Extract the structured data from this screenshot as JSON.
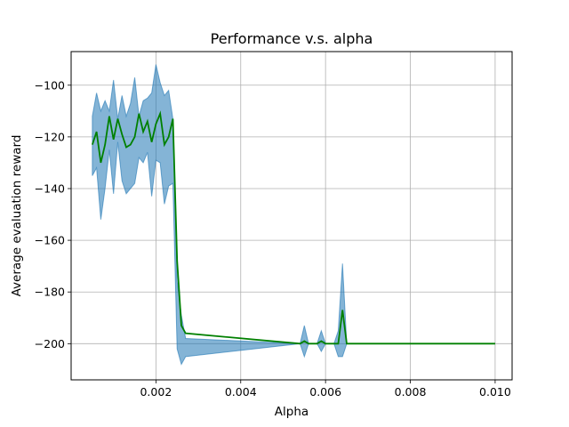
{
  "chart_data": {
    "type": "line",
    "title": "Performance v.s. alpha",
    "xlabel": "Alpha",
    "ylabel": "Average evaluation reward",
    "xlim": [
      0.0,
      0.0104
    ],
    "ylim": [
      -214,
      -87
    ],
    "xticks": [
      0.002,
      0.004,
      0.006,
      0.008,
      0.01
    ],
    "xtick_labels": [
      "0.002",
      "0.004",
      "0.006",
      "0.008",
      "0.010"
    ],
    "yticks": [
      -100,
      -120,
      -140,
      -160,
      -180,
      -200
    ],
    "ytick_labels": [
      "−100",
      "−120",
      "−140",
      "−160",
      "−180",
      "−200"
    ],
    "grid": true,
    "colors": {
      "mean_line": "#008000",
      "band_fill": "#1f77b4",
      "grid": "#b0b0b0"
    },
    "series": [
      {
        "x": [
          0.0005,
          0.0006,
          0.0007,
          0.0008,
          0.0009,
          0.001,
          0.0011,
          0.0012,
          0.0013,
          0.0014,
          0.0015,
          0.0016,
          0.0017,
          0.0018,
          0.0019,
          0.002,
          0.0021,
          0.0022,
          0.0023,
          0.0024,
          0.0025,
          0.0026,
          0.0027,
          0.0054,
          0.0055,
          0.0056,
          0.0057,
          0.0058,
          0.0059,
          0.006,
          0.0061,
          0.0062,
          0.0063,
          0.0064,
          0.0065,
          0.01
        ],
        "mean": [
          -123,
          -118,
          -130,
          -123,
          -112,
          -121,
          -113,
          -119,
          -124,
          -123,
          -120,
          -111,
          -118,
          -114,
          -122,
          -115,
          -111,
          -123,
          -120,
          -113,
          -168,
          -193,
          -196,
          -200,
          -199,
          -200,
          -200,
          -200,
          -199,
          -200,
          -200,
          -200,
          -200,
          -187,
          -200,
          -200
        ],
        "lower": [
          -135,
          -132,
          -152,
          -140,
          -125,
          -142,
          -122,
          -137,
          -142,
          -140,
          -138,
          -128,
          -130,
          -126,
          -143,
          -129,
          -130,
          -146,
          -139,
          -138,
          -202,
          -208,
          -205,
          -200,
          -205,
          -200,
          -200,
          -200,
          -203,
          -200,
          -200,
          -200,
          -205,
          -205,
          -200,
          -200
        ],
        "upper": [
          -112,
          -103,
          -110,
          -106,
          -110,
          -98,
          -113,
          -104,
          -112,
          -107,
          -97,
          -112,
          -106,
          -105,
          -103,
          -92,
          -99,
          -104,
          -102,
          -113,
          -176,
          -189,
          -198,
          -200,
          -193,
          -200,
          -200,
          -200,
          -195,
          -200,
          -200,
          -200,
          -195,
          -169,
          -200,
          -200
        ]
      }
    ]
  }
}
